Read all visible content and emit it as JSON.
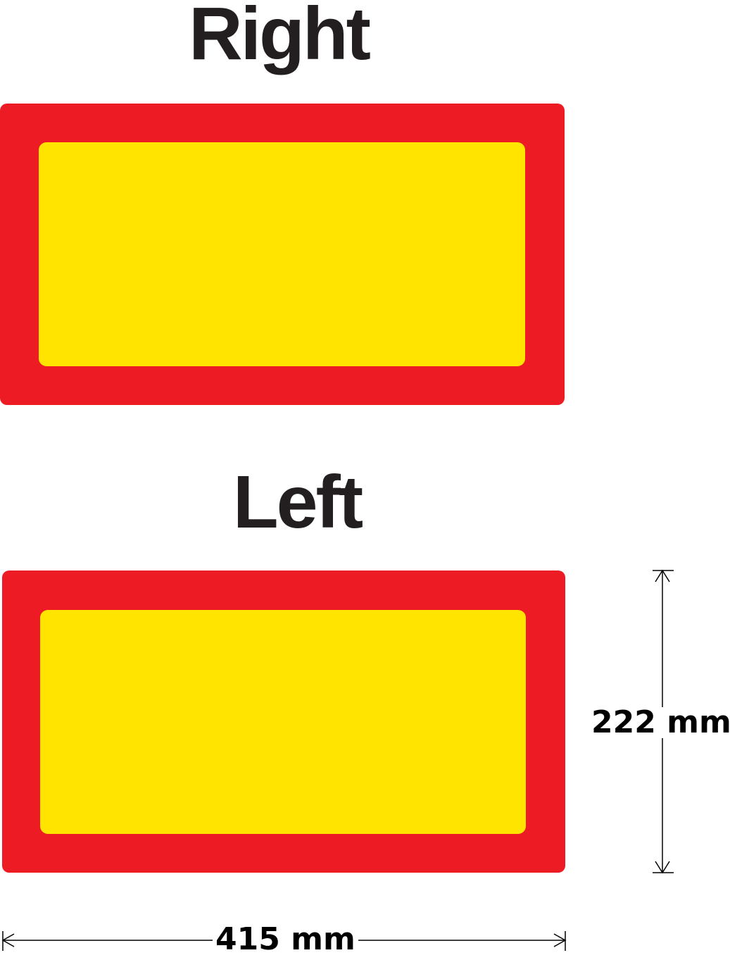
{
  "headings": {
    "right": "Right",
    "left": "Left"
  },
  "dimensions": {
    "height_label": "222 mm",
    "width_label": "415 mm",
    "height_mm": 222,
    "width_mm": 415
  },
  "colors": {
    "border_red": "#ed1c24",
    "panel_yellow": "#ffe400",
    "text": "#231f20",
    "dimension_line": "#000000"
  }
}
